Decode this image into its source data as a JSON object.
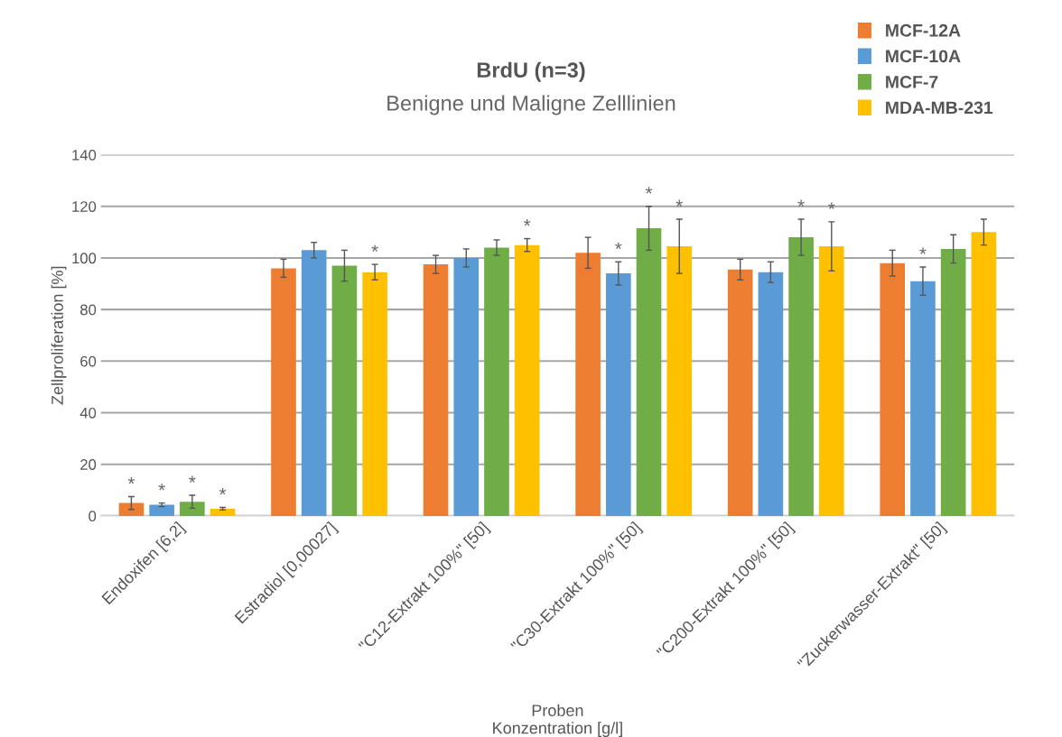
{
  "chart_data": {
    "type": "bar",
    "title": "BrdU (n=3)",
    "subtitle": "Benigne und Maligne Zelllinien",
    "xlabel": "Proben\nKonzentration [g/l]",
    "ylabel": "Zellproliferation [%]",
    "categories": [
      "Endoxifen [6,2]",
      "Estradiol [0,00027]",
      "\"C12-Extrakt 100%\" [50]",
      "\"C30-Extrakt 100%\" [50]",
      "\"C200-Extrakt 100%\" [50]",
      "\"Zuckerwasser-Extrakt\" [50]"
    ],
    "series": [
      {
        "name": "MCF-12A",
        "color": "#ed7d31",
        "values": [
          5,
          96,
          97.5,
          102,
          95.5,
          98
        ],
        "errors": [
          2.5,
          3.5,
          3.5,
          6,
          4,
          5
        ],
        "value_labels": [
          "*",
          null,
          null,
          null,
          null,
          null
        ]
      },
      {
        "name": "MCF-10A",
        "color": "#5b9bd5",
        "values": [
          4.3,
          103,
          100,
          94,
          94.5,
          91
        ],
        "errors": [
          0.7,
          3,
          3.5,
          4.5,
          4,
          5.5
        ],
        "value_labels": [
          "*",
          null,
          null,
          "*",
          null,
          "*"
        ]
      },
      {
        "name": "MCF-7",
        "color": "#70ad47",
        "values": [
          5.5,
          97,
          104,
          111.5,
          108,
          103.5
        ],
        "errors": [
          2.5,
          6,
          3,
          8.5,
          7,
          5.5
        ],
        "value_labels": [
          "*",
          null,
          null,
          "*",
          "*",
          null
        ]
      },
      {
        "name": "MDA-MB-231",
        "color": "#ffc000",
        "values": [
          2.8,
          94.5,
          105,
          104.5,
          104.5,
          110
        ],
        "errors": [
          0.5,
          3,
          2.5,
          10.5,
          9.5,
          5
        ],
        "value_labels": [
          "*",
          "*",
          "*",
          "*",
          "*",
          null
        ]
      }
    ],
    "ylim": [
      0,
      140
    ],
    "yticks": [
      0,
      20,
      40,
      60,
      80,
      100,
      120,
      140
    ],
    "grid": "y",
    "legend": "top right"
  }
}
